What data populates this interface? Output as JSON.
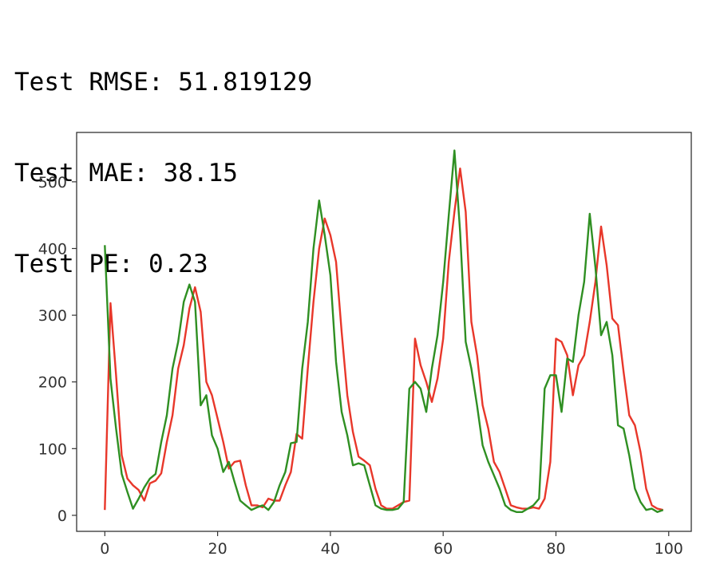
{
  "output": {
    "lines": [
      "Test RMSE: 51.819129",
      "Test MAE: 38.15",
      "Test PE: 0.23"
    ]
  },
  "chart_data": {
    "type": "line",
    "title": "",
    "xlabel": "",
    "ylabel": "",
    "xlim": [
      -5,
      104
    ],
    "ylim": [
      -24,
      574
    ],
    "xticks": [
      0,
      20,
      40,
      60,
      80,
      100
    ],
    "yticks": [
      0,
      100,
      200,
      300,
      400,
      500
    ],
    "grid": false,
    "legend": "none",
    "series": [
      {
        "color": "#e8372a",
        "x": [
          0,
          1,
          2,
          3,
          4,
          5,
          6,
          7,
          8,
          9,
          10,
          11,
          12,
          13,
          14,
          15,
          16,
          17,
          18,
          19,
          20,
          21,
          22,
          23,
          24,
          25,
          26,
          27,
          28,
          29,
          30,
          31,
          32,
          33,
          34,
          35,
          36,
          37,
          38,
          39,
          40,
          41,
          42,
          43,
          44,
          45,
          46,
          47,
          48,
          49,
          50,
          51,
          52,
          53,
          54,
          55,
          56,
          57,
          58,
          59,
          60,
          61,
          62,
          63,
          64,
          65,
          66,
          67,
          68,
          69,
          70,
          71,
          72,
          73,
          74,
          75,
          76,
          77,
          78,
          79,
          80,
          81,
          82,
          83,
          84,
          85,
          86,
          87,
          88,
          89,
          90,
          91,
          92,
          93,
          94,
          95,
          96,
          97,
          98,
          99
        ],
        "values": [
          8,
          318,
          210,
          90,
          55,
          45,
          38,
          22,
          48,
          52,
          63,
          110,
          150,
          220,
          255,
          310,
          342,
          305,
          200,
          180,
          145,
          110,
          70,
          80,
          82,
          45,
          15,
          15,
          12,
          25,
          22,
          22,
          45,
          65,
          122,
          115,
          220,
          320,
          400,
          445,
          420,
          380,
          275,
          180,
          125,
          88,
          82,
          75,
          40,
          15,
          10,
          10,
          15,
          20,
          22,
          265,
          225,
          200,
          170,
          205,
          265,
          380,
          455,
          520,
          455,
          290,
          240,
          165,
          130,
          80,
          65,
          40,
          15,
          12,
          10,
          10,
          12,
          10,
          25,
          80,
          265,
          260,
          240,
          180,
          225,
          240,
          290,
          350,
          433,
          375,
          295,
          285,
          215,
          150,
          135,
          95,
          40,
          15,
          10,
          8
        ]
      },
      {
        "color": "#2f8f22",
        "x": [
          0,
          1,
          2,
          3,
          4,
          5,
          6,
          7,
          8,
          9,
          10,
          11,
          12,
          13,
          14,
          15,
          16,
          17,
          18,
          19,
          20,
          21,
          22,
          23,
          24,
          25,
          26,
          27,
          28,
          29,
          30,
          31,
          32,
          33,
          34,
          35,
          36,
          37,
          38,
          39,
          40,
          41,
          42,
          43,
          44,
          45,
          46,
          47,
          48,
          49,
          50,
          51,
          52,
          53,
          54,
          55,
          56,
          57,
          58,
          59,
          60,
          61,
          62,
          63,
          64,
          65,
          66,
          67,
          68,
          69,
          70,
          71,
          72,
          73,
          74,
          75,
          76,
          77,
          78,
          79,
          80,
          81,
          82,
          83,
          84,
          85,
          86,
          87,
          88,
          89,
          90,
          91,
          92,
          93,
          94,
          95,
          96,
          97,
          98,
          99
        ],
        "values": [
          405,
          205,
          130,
          62,
          35,
          10,
          25,
          42,
          55,
          62,
          110,
          150,
          220,
          260,
          320,
          346,
          320,
          165,
          180,
          120,
          100,
          65,
          80,
          50,
          22,
          15,
          8,
          12,
          15,
          8,
          20,
          45,
          65,
          108,
          110,
          220,
          290,
          400,
          472,
          420,
          360,
          230,
          155,
          120,
          75,
          78,
          75,
          45,
          15,
          10,
          8,
          8,
          10,
          20,
          190,
          200,
          190,
          155,
          220,
          270,
          350,
          450,
          547,
          425,
          260,
          220,
          165,
          105,
          80,
          60,
          40,
          15,
          8,
          5,
          5,
          10,
          15,
          25,
          190,
          210,
          210,
          155,
          235,
          230,
          300,
          350,
          452,
          372,
          270,
          290,
          240,
          135,
          130,
          90,
          40,
          20,
          8,
          10,
          5,
          8
        ]
      }
    ]
  }
}
